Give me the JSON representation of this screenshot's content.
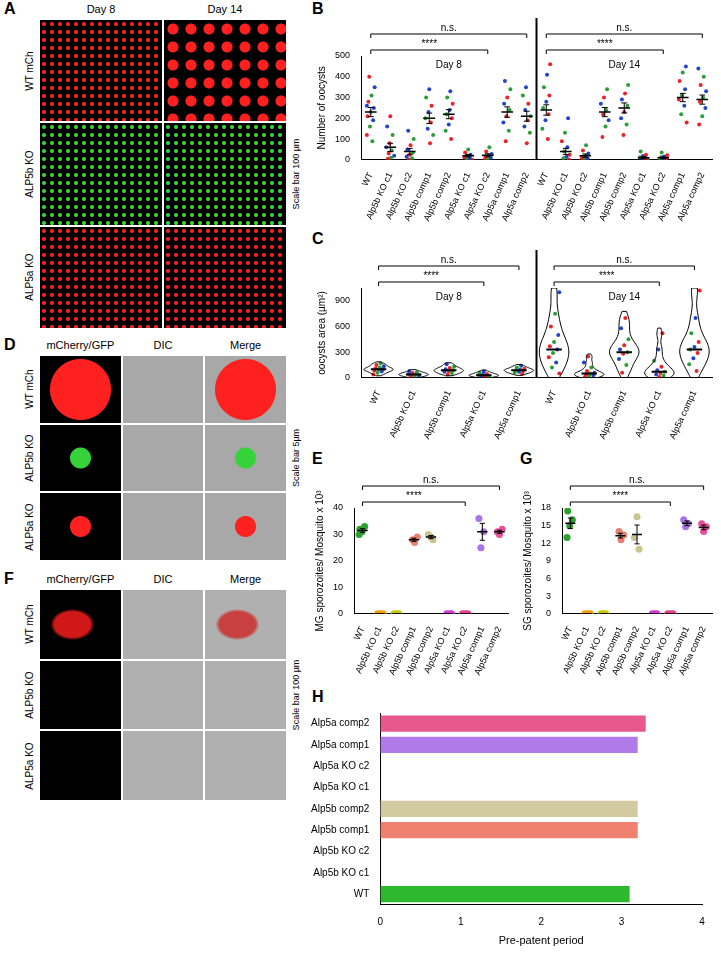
{
  "images": [
    {
      "panel": "A",
      "columns": [
        "Day 8",
        "Day 14"
      ],
      "rows": [
        "WT mCh",
        "ALP5b KO",
        "ALP5a KO"
      ],
      "scale_bar": "Scale bar 100 µm"
    },
    {
      "panel": "D",
      "columns": [
        "mCherry/GFP",
        "DIC",
        "Merge"
      ],
      "rows": [
        "WT mCh",
        "ALP5b KO",
        "ALP5a KO"
      ],
      "scale_bar": "Scale bar 5µm"
    },
    {
      "panel": "F",
      "columns": [
        "mCherry/GFP",
        "DIC",
        "Merge"
      ],
      "rows": [
        "WT mCh",
        "ALP5b KO",
        "ALP5a KO"
      ],
      "scale_bar": "Scale bar 100 µm"
    }
  ],
  "chart_data": [
    {
      "panel": "B",
      "type": "scatter",
      "y_label": "Number of oocysts",
      "ylim": [
        0,
        500
      ],
      "yticks": [
        0,
        100,
        200,
        300,
        400,
        500
      ],
      "grid": false,
      "groups": [
        {
          "title": "Day 8",
          "categories": [
            "WT",
            "Alp5b KO c1",
            "Alp5b KO c2",
            "Alp5b comp1",
            "Alp5b comp2",
            "Alp5a KO c1",
            "Alp5a KO c2",
            "Alp5a comp1",
            "Alp5a comp2"
          ],
          "points": [
            [
              120,
              160,
              190,
              210,
              230,
              250,
              280,
              310,
              350,
              400,
              90,
              260
            ],
            [
              5,
              10,
              20,
              30,
              45,
              60,
              80,
              120,
              160,
              210
            ],
            [
              2,
              8,
              15,
              25,
              35,
              50,
              70,
              100,
              140
            ],
            [
              80,
              120,
              150,
              180,
              200,
              230,
              260,
              300,
              340
            ],
            [
              100,
              140,
              170,
              200,
              220,
              240,
              270,
              300,
              330
            ],
            [
              0,
              3,
              8,
              12,
              18,
              25,
              35,
              50
            ],
            [
              0,
              4,
              10,
              15,
              20,
              28,
              40,
              60
            ],
            [
              90,
              140,
              180,
              210,
              240,
              270,
              300,
              340,
              380
            ],
            [
              80,
              130,
              160,
              190,
              210,
              240,
              270,
              310,
              350
            ]
          ],
          "values": [
            230,
            60,
            40,
            200,
            220,
            20,
            22,
            230,
            210
          ],
          "errors": [
            22,
            20,
            15,
            25,
            22,
            6,
            7,
            25,
            24
          ],
          "annotations": [
            {
              "text": "n.s.",
              "from": 0,
              "to": 8
            },
            {
              "text": "****",
              "from": 0,
              "to": 6
            }
          ]
        },
        {
          "title": "Day 14",
          "categories": [
            "WT",
            "Alp5b KO c1",
            "Alp5b KO c2",
            "Alp5b comp1",
            "Alp5b comp2",
            "Alp5a KO c1",
            "Alp5a KO c2",
            "Alp5a comp1",
            "Alp5a comp2"
          ],
          "points": [
            [
              100,
              150,
              190,
              220,
              250,
              280,
              310,
              350,
              410,
              460
            ],
            [
              2,
              8,
              15,
              25,
              40,
              60,
              90,
              130,
              200
            ],
            [
              0,
              3,
              8,
              12,
              20,
              30,
              45,
              70
            ],
            [
              110,
              160,
              190,
              220,
              240,
              270,
              300,
              340
            ],
            [
              120,
              170,
              200,
              230,
              260,
              290,
              320,
              360
            ],
            [
              0,
              2,
              5,
              8,
              12,
              18,
              25,
              40
            ],
            [
              0,
              2,
              4,
              8,
              12,
              16,
              22,
              35
            ],
            [
              180,
              220,
              260,
              290,
              310,
              340,
              380,
              420,
              450
            ],
            [
              170,
              210,
              250,
              280,
              300,
              330,
              360,
              400,
              440
            ]
          ],
          "values": [
            240,
            40,
            20,
            230,
            250,
            10,
            10,
            300,
            290
          ],
          "errors": [
            25,
            15,
            8,
            22,
            24,
            5,
            4,
            20,
            22
          ],
          "annotations": [
            {
              "text": "n.s.",
              "from": 0,
              "to": 8
            },
            {
              "text": "****",
              "from": 0,
              "to": 6
            }
          ]
        }
      ]
    },
    {
      "panel": "C",
      "type": "violin",
      "y_label": "oocysts area (µm²)",
      "ylim": [
        0,
        1050
      ],
      "yticks": [
        0,
        300,
        600,
        900
      ],
      "grid": false,
      "groups": [
        {
          "title": "Day 8",
          "categories": [
            "WT",
            "Alp5b KO c1",
            "Alp5b comp1",
            "Alp5a KO c1",
            "Alp5a comp1"
          ],
          "points": [
            [
              40,
              60,
              75,
              85,
              95,
              100,
              110,
              120,
              135,
              150,
              170
            ],
            [
              10,
              20,
              30,
              35,
              40,
              45,
              55,
              65,
              80
            ],
            [
              40,
              55,
              70,
              80,
              90,
              100,
              115,
              130,
              160
            ],
            [
              8,
              15,
              22,
              28,
              32,
              38,
              45,
              60,
              75
            ],
            [
              45,
              60,
              70,
              80,
              90,
              95,
              105,
              120,
              140
            ]
          ],
          "values": [
            100,
            40,
            90,
            30,
            90
          ],
          "annotations": [
            {
              "text": "n.s.",
              "from": 0,
              "to": 4
            },
            {
              "text": "****",
              "from": 0,
              "to": 3
            }
          ]
        },
        {
          "title": "Day 14",
          "categories": [
            "WT",
            "Alp5b KO c1",
            "Alp5b comp1",
            "Alp5a KO c1",
            "Alp5a comp1"
          ],
          "points": [
            [
              50,
              120,
              180,
              240,
              290,
              330,
              370,
              420,
              500,
              600,
              750,
              1000
            ],
            [
              10,
              20,
              30,
              40,
              50,
              60,
              80,
              120,
              180,
              250
            ],
            [
              60,
              150,
              220,
              280,
              300,
              330,
              380,
              450,
              580,
              700
            ],
            [
              10,
              25,
              40,
              55,
              70,
              90,
              130,
              200,
              330,
              520
            ],
            [
              80,
              160,
              230,
              290,
              330,
              360,
              420,
              520,
              700,
              1020
            ]
          ],
          "values": [
            330,
            50,
            300,
            70,
            330
          ],
          "annotations": [
            {
              "text": "n.s.",
              "from": 0,
              "to": 4
            },
            {
              "text": "****",
              "from": 0,
              "to": 3
            }
          ]
        }
      ]
    },
    {
      "panel": "E",
      "type": "scatter",
      "y_label": "MG sporozoites/ Mosquito x 10³",
      "ylim": [
        0,
        40
      ],
      "yticks": [
        0,
        10,
        20,
        30,
        40
      ],
      "grid": false,
      "groups": [
        {
          "categories": [
            "WT",
            "Alp5b KO c1",
            "Alp5b KO c2",
            "Alp5b comp1",
            "Alp5b comp2",
            "Alp5a KO c1",
            "Alp5a KO c2",
            "Alp5a comp1",
            "Alp5a comp2"
          ],
          "colors": [
            "#2ca02c",
            "#f5a000",
            "#c8c800",
            "#e88070",
            "#c8c490",
            "#d63ad6",
            "#e8408a",
            "#a875e8",
            "#e8509a"
          ],
          "points": [
            [
              30,
              31,
              33,
              32
            ],
            [
              0,
              0,
              0
            ],
            [
              0,
              0,
              0
            ],
            [
              27,
              29,
              28
            ],
            [
              28,
              30,
              29
            ],
            [
              0,
              0,
              0
            ],
            [
              0,
              0,
              0
            ],
            [
              25,
              31,
              36
            ],
            [
              30,
              32,
              31
            ]
          ],
          "values": [
            31.5,
            0,
            0,
            28,
            29,
            0,
            0,
            31,
            31
          ],
          "errors": [
            0.7,
            0,
            0,
            0.6,
            0.6,
            0,
            0,
            3.2,
            0.6
          ],
          "annotations": [
            {
              "text": "n.s.",
              "from": 0,
              "to": 8
            },
            {
              "text": "****",
              "from": 0,
              "to": 6
            }
          ]
        }
      ]
    },
    {
      "panel": "G",
      "type": "scatter",
      "y_label": "SG sporozoites/ Mosquito x 10³",
      "ylim": [
        0,
        18
      ],
      "yticks": [
        0,
        3,
        6,
        9,
        12,
        15,
        18
      ],
      "grid": false,
      "groups": [
        {
          "categories": [
            "WT",
            "Alp5b KO c1",
            "Alp5b KO c2",
            "Alp5b comp1",
            "Alp5b comp2",
            "Alp5a KO c1",
            "Alp5a KO c2",
            "Alp5a comp1",
            "Alp5a comp2"
          ],
          "colors": [
            "#2ca02c",
            "#f5a000",
            "#c8c800",
            "#e88070",
            "#c8c490",
            "#d63ad6",
            "#e8408a",
            "#a875e8",
            "#e8509a"
          ],
          "points": [
            [
              13,
              15,
              16,
              17.5
            ],
            [
              0,
              0,
              0
            ],
            [
              0,
              0,
              0
            ],
            [
              12.6,
              13.4,
              14
            ],
            [
              11,
              13,
              16.5
            ],
            [
              0,
              0,
              0
            ],
            [
              0,
              0,
              0
            ],
            [
              14.8,
              15.3,
              16
            ],
            [
              14,
              14.8,
              15.3
            ]
          ],
          "values": [
            15.4,
            0,
            0,
            13.3,
            13.5,
            0,
            0,
            15.4,
            14.7
          ],
          "errors": [
            0.9,
            0,
            0,
            0.4,
            1.6,
            0,
            0,
            0.4,
            0.4
          ],
          "annotations": [
            {
              "text": "n.s.",
              "from": 0,
              "to": 8
            },
            {
              "text": "****",
              "from": 0,
              "to": 6
            }
          ]
        }
      ]
    },
    {
      "panel": "H",
      "type": "bar",
      "orientation": "horizontal",
      "x_label": "Pre-patent period",
      "categories": [
        "Alp5a comp2",
        "Alp5a comp1",
        "Alp5a KO c2",
        "Alp5a KO c1",
        "Alp5b comp2",
        "Alp5b comp1",
        "Alp5b KO c2",
        "Alp5b KO c1",
        "WT"
      ],
      "values": [
        3.3,
        3.2,
        null,
        null,
        3.2,
        3.2,
        null,
        null,
        3.1
      ],
      "colors": [
        "#e8588c",
        "#b07be8",
        "#d63ad6",
        "#d63ad6",
        "#d2caa0",
        "#f08070",
        "#c8c800",
        "#f5a000",
        "#2db82d"
      ],
      "xlim": [
        0,
        4
      ],
      "xticks": [
        0,
        1,
        2,
        3,
        4
      ],
      "grid": false
    }
  ]
}
